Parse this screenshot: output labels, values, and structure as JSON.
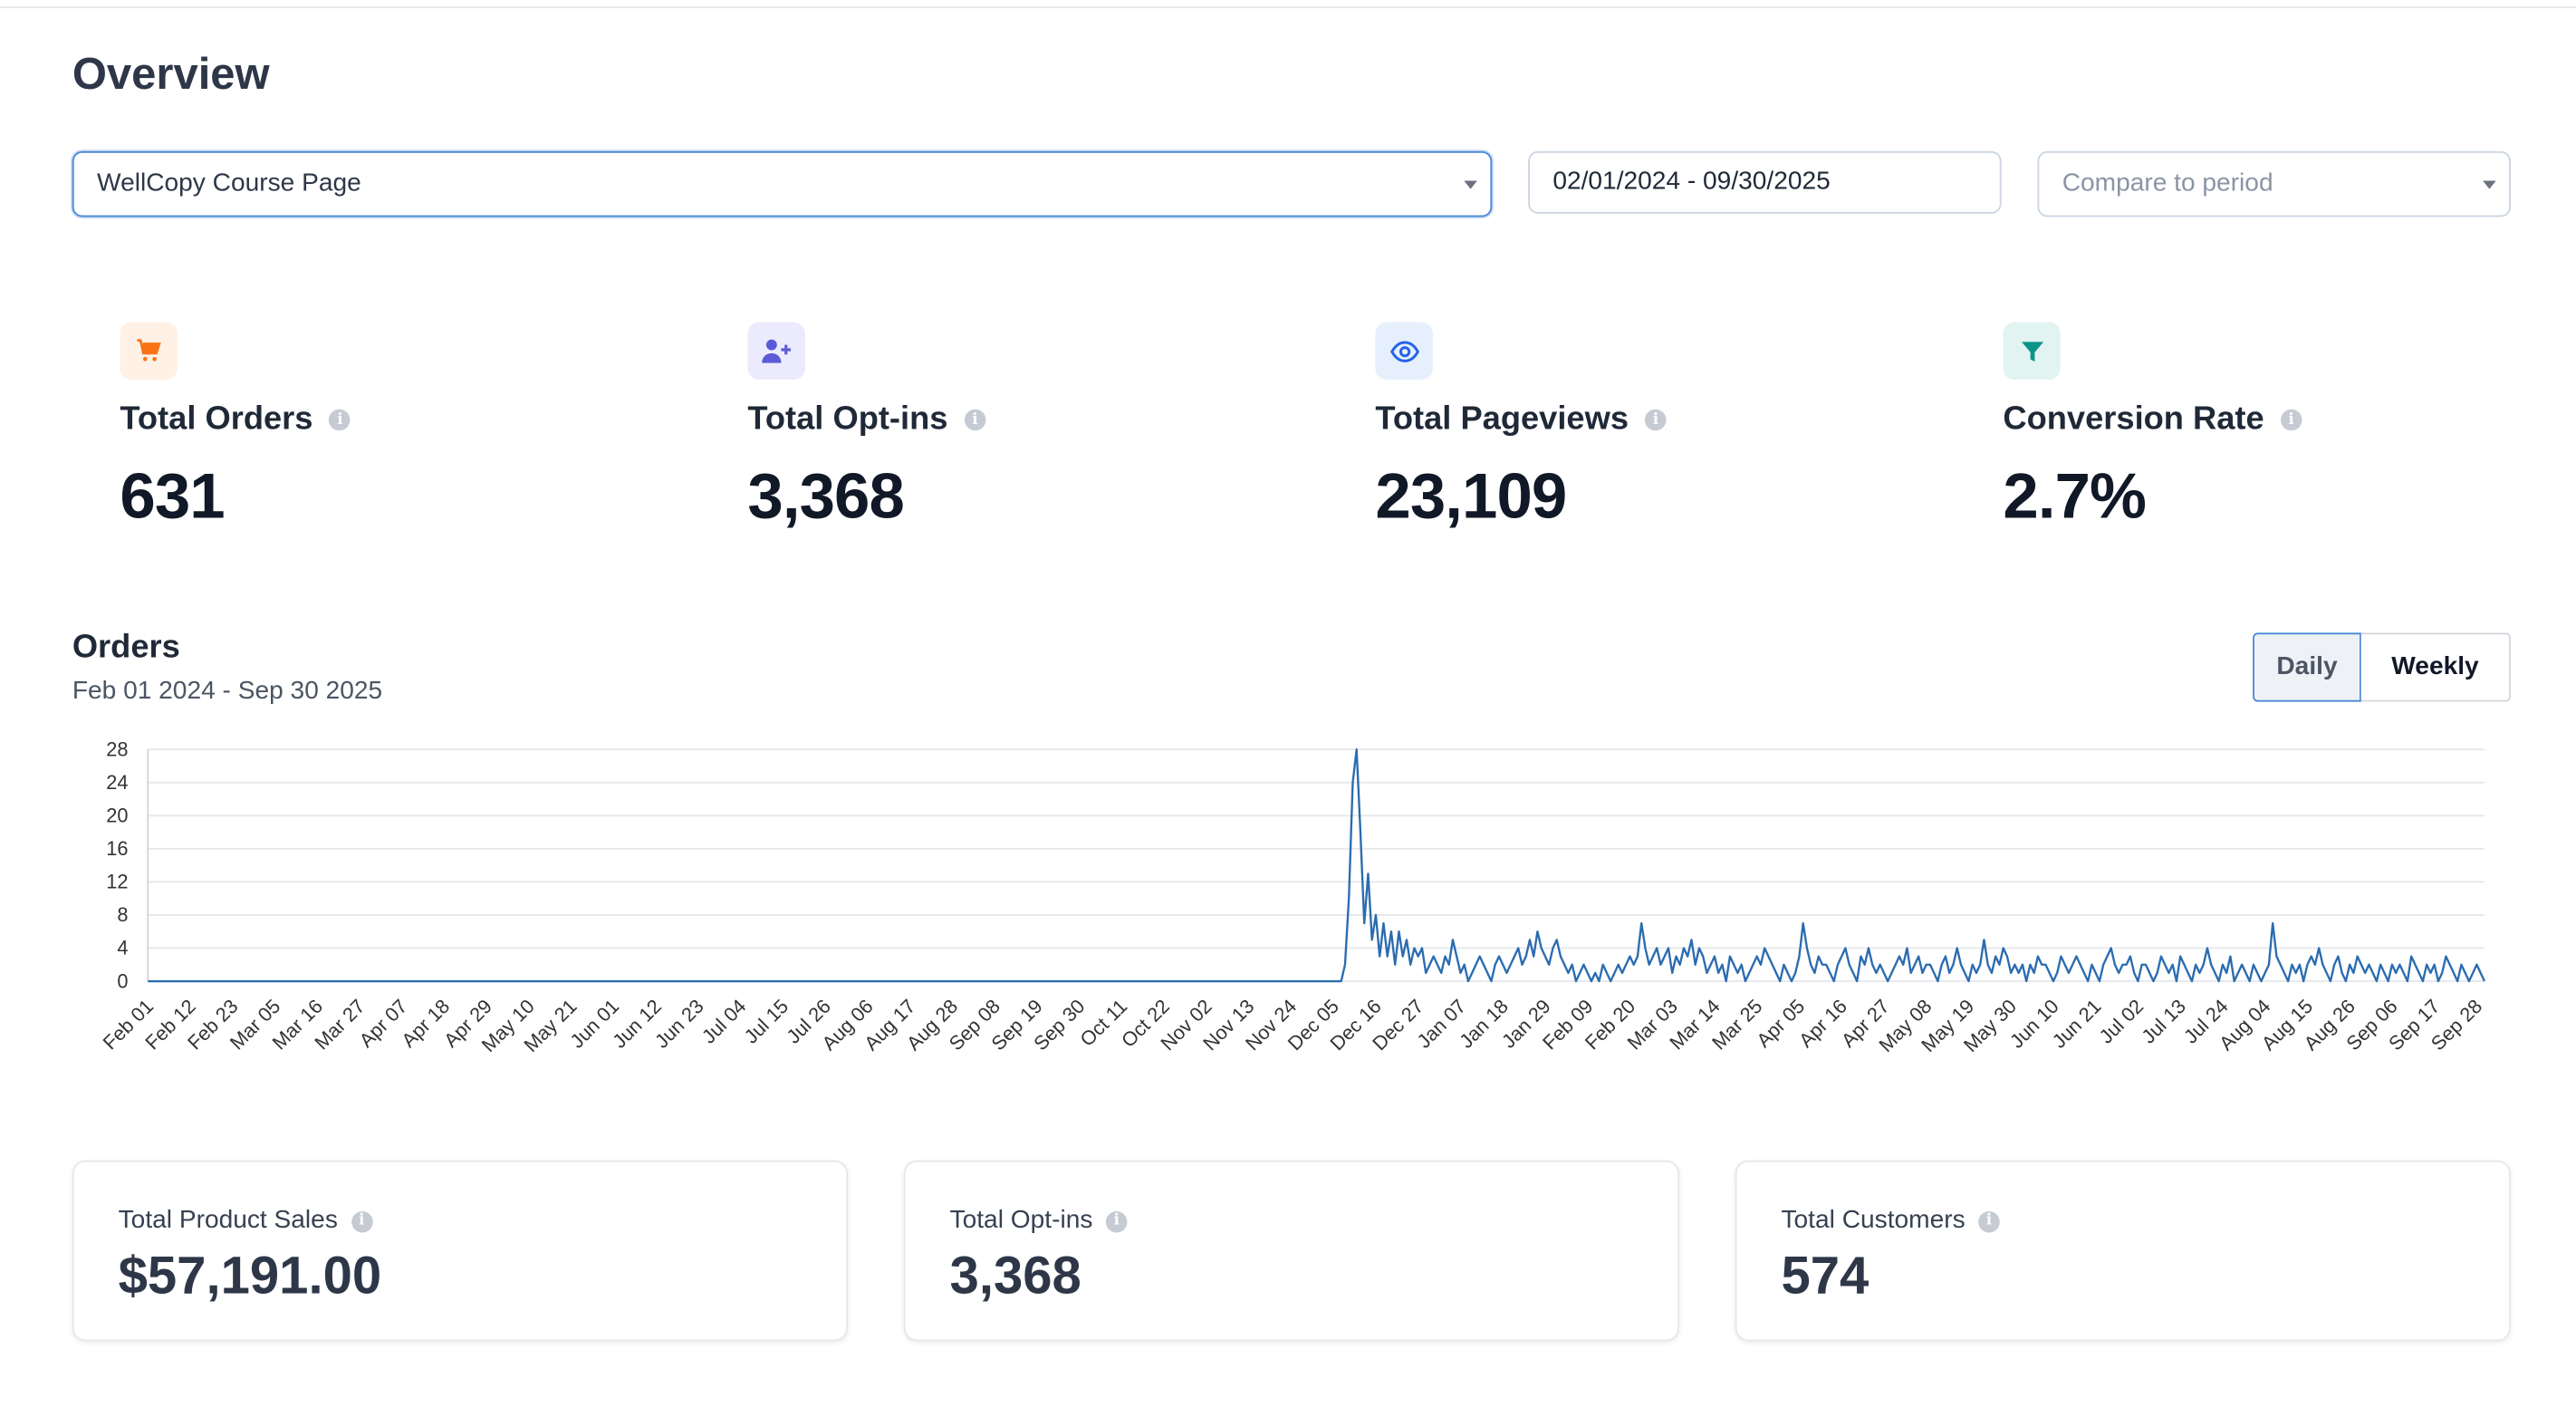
{
  "header": {
    "title": "Overview"
  },
  "filters": {
    "page_select": "WellCopy Course Page",
    "date_range": "02/01/2024 - 09/30/2025",
    "compare_placeholder": "Compare to period"
  },
  "stats": [
    {
      "label": "Total Orders",
      "value": "631",
      "icon": "cart-icon",
      "color": "#f97316",
      "bg": "#fff1e6"
    },
    {
      "label": "Total Opt-ins",
      "value": "3,368",
      "icon": "user-plus-icon",
      "color": "#5b5bd6",
      "bg": "#ecebfd"
    },
    {
      "label": "Total Pageviews",
      "value": "23,109",
      "icon": "eye-icon",
      "color": "#2563eb",
      "bg": "#e6effc"
    },
    {
      "label": "Conversion Rate",
      "value": "2.7%",
      "icon": "funnel-icon",
      "color": "#0d9488",
      "bg": "#e2f4f2"
    }
  ],
  "orders_section": {
    "title": "Orders",
    "subtitle": "Feb 01 2024 - Sep 30 2025",
    "toggle": {
      "daily": "Daily",
      "weekly": "Weekly",
      "active": "Daily"
    }
  },
  "chart_data": {
    "type": "line",
    "title": "Orders",
    "xlabel": "",
    "ylabel": "",
    "ylim": [
      0,
      28
    ],
    "yticks": [
      0,
      4,
      8,
      12,
      16,
      20,
      24,
      28
    ],
    "grid": true,
    "line_color": "#2b6cb0",
    "xtick_labels": [
      "Feb 01",
      "Feb 12",
      "Feb 23",
      "Mar 05",
      "Mar 16",
      "Mar 27",
      "Apr 07",
      "Apr 18",
      "Apr 29",
      "May 10",
      "May 21",
      "Jun 01",
      "Jun 12",
      "Jun 23",
      "Jul 04",
      "Jul 15",
      "Jul 26",
      "Aug 06",
      "Aug 17",
      "Aug 28",
      "Sep 08",
      "Sep 19",
      "Sep 30",
      "Oct 11",
      "Oct 22",
      "Nov 02",
      "Nov 13",
      "Nov 24",
      "Dec 05",
      "Dec 16",
      "Dec 27",
      "Jan 07",
      "Jan 18",
      "Jan 29",
      "Feb 09",
      "Feb 20",
      "Mar 03",
      "Mar 14",
      "Mar 25",
      "Apr 05",
      "Apr 16",
      "Apr 27",
      "May 08",
      "May 19",
      "May 30",
      "Jun 10",
      "Jun 21",
      "Jul 02",
      "Jul 13",
      "Jul 24",
      "Aug 04",
      "Aug 15",
      "Aug 26",
      "Sep 06",
      "Sep 17",
      "Sep 28"
    ],
    "series": [
      {
        "zero_before": "Dec 08",
        "values_from_dec_08": [
          2,
          10,
          24,
          28,
          18,
          7,
          13,
          5,
          8,
          3,
          7,
          3,
          6,
          2,
          6,
          3,
          5,
          2,
          4,
          3,
          4,
          1,
          2,
          3,
          2,
          1,
          3,
          2,
          5,
          3,
          1,
          2,
          0,
          1,
          2,
          3,
          2,
          1,
          0,
          2,
          3,
          2,
          1,
          2,
          3,
          4,
          2,
          3,
          5,
          3,
          6,
          4,
          3,
          2,
          4,
          5,
          3,
          2,
          1,
          2,
          0,
          1,
          2,
          1,
          0,
          1,
          0,
          2,
          1,
          0,
          1,
          2,
          1,
          2,
          3,
          2,
          3,
          7,
          4,
          2,
          3,
          4,
          2,
          3,
          4,
          1,
          3,
          2,
          4,
          3,
          5,
          2,
          4,
          3,
          1,
          2,
          3,
          1,
          2,
          0,
          3,
          2,
          1,
          2,
          0,
          1,
          2,
          3,
          2,
          4,
          3,
          2,
          1,
          0,
          2,
          1,
          0,
          1,
          3,
          7,
          4,
          2,
          1,
          3,
          2,
          2,
          1,
          0,
          2,
          3,
          4,
          2,
          1,
          0,
          3,
          2,
          4,
          2,
          1,
          2,
          1,
          0,
          1,
          2,
          3,
          2,
          4,
          1,
          2,
          3,
          1,
          2,
          2,
          1,
          0,
          2,
          3,
          1,
          2,
          4,
          2,
          1,
          0,
          2,
          1,
          2,
          5,
          2,
          1,
          3,
          2,
          4,
          3,
          1,
          2,
          1,
          2,
          0,
          2,
          1,
          3,
          2,
          2,
          1,
          0,
          1,
          3,
          2,
          1,
          2,
          3,
          2,
          1,
          0,
          2,
          1,
          0,
          2,
          3,
          4,
          2,
          1,
          2,
          2,
          3,
          1,
          0,
          2,
          2,
          1,
          0,
          1,
          3,
          2,
          1,
          2,
          0,
          3,
          2,
          1,
          0,
          2,
          1,
          2,
          4,
          2,
          1,
          0,
          2,
          1,
          3,
          0,
          1,
          2,
          1,
          0,
          2,
          1,
          0,
          1,
          2,
          7,
          3,
          2,
          1,
          0,
          2,
          1,
          2,
          0,
          2,
          3,
          2,
          4,
          2,
          1,
          0,
          2,
          3,
          1,
          0,
          2,
          1,
          3,
          2,
          1,
          2,
          1,
          0,
          2,
          1,
          0,
          2,
          1,
          2,
          1,
          0,
          3,
          2,
          1,
          0,
          2,
          1,
          2,
          0,
          1,
          3,
          2,
          1,
          0,
          2,
          1,
          0,
          1,
          2,
          1,
          0,
          2,
          1,
          0,
          4,
          2,
          1,
          0,
          2,
          1,
          0,
          2,
          3,
          2,
          1,
          0,
          2,
          1,
          0,
          2,
          1,
          0,
          3,
          1,
          0,
          2,
          1,
          0,
          2,
          1,
          0,
          2,
          1,
          2,
          1,
          0,
          2,
          1,
          0,
          2,
          1,
          0,
          2,
          1,
          3,
          1,
          0,
          2,
          1,
          0,
          2,
          4,
          3,
          2,
          1,
          3,
          2,
          4,
          3,
          1,
          2,
          4,
          2,
          3,
          2,
          4,
          3,
          2,
          1,
          2,
          3,
          2,
          4,
          2,
          3,
          1,
          2,
          4,
          7,
          3,
          2,
          4,
          2,
          3,
          1,
          2,
          3,
          4,
          2,
          1,
          2,
          3,
          2,
          1,
          2,
          3,
          4,
          2,
          3,
          1,
          2,
          4,
          2,
          3,
          2,
          4,
          2,
          3,
          4,
          2,
          1,
          2,
          3,
          2,
          4,
          3,
          2,
          1,
          3,
          1,
          0,
          1,
          2,
          0,
          1,
          0,
          0,
          0,
          1,
          0,
          0,
          0,
          0,
          0,
          0,
          0,
          0,
          0
        ]
      }
    ]
  },
  "summary_cards": [
    {
      "label": "Total Product Sales",
      "value": "$57,191.00"
    },
    {
      "label": "Total Opt-ins",
      "value": "3,368"
    },
    {
      "label": "Total Customers",
      "value": "574"
    }
  ]
}
